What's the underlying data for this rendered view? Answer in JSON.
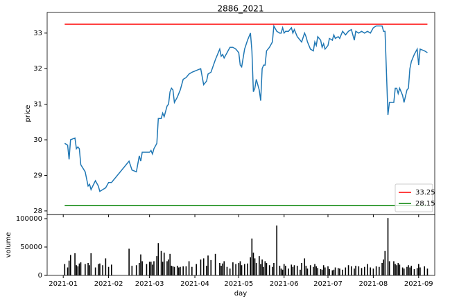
{
  "chart_data": [
    {
      "type": "line",
      "title": "2886_2021",
      "ylabel": "price",
      "x": [
        "2021-01-02",
        "2021-01-04",
        "2021-01-05",
        "2021-01-06",
        "2021-01-09",
        "2021-01-10",
        "2021-01-11",
        "2021-01-12",
        "2021-01-13",
        "2021-01-16",
        "2021-01-18",
        "2021-01-19",
        "2021-01-20",
        "2021-01-23",
        "2021-01-25",
        "2021-01-26",
        "2021-01-28",
        "2021-01-30",
        "2021-02-01",
        "2021-02-03",
        "2021-02-15",
        "2021-02-17",
        "2021-02-20",
        "2021-02-22",
        "2021-02-23",
        "2021-02-24",
        "2021-02-27",
        "2021-03-01",
        "2021-03-02",
        "2021-03-03",
        "2021-03-04",
        "2021-03-06",
        "2021-03-07",
        "2021-03-09",
        "2021-03-10",
        "2021-03-11",
        "2021-03-13",
        "2021-03-14",
        "2021-03-15",
        "2021-03-16",
        "2021-03-17",
        "2021-03-18",
        "2021-03-20",
        "2021-03-21",
        "2021-03-22",
        "2021-03-24",
        "2021-03-26",
        "2021-03-28",
        "2021-03-30",
        "2021-04-02",
        "2021-04-05",
        "2021-04-07",
        "2021-04-09",
        "2021-04-10",
        "2021-04-12",
        "2021-04-15",
        "2021-04-18",
        "2021-04-19",
        "2021-04-20",
        "2021-04-21",
        "2021-04-23",
        "2021-04-25",
        "2021-04-27",
        "2021-04-29",
        "2021-05-01",
        "2021-05-02",
        "2021-05-03",
        "2021-05-05",
        "2021-05-07",
        "2021-05-09",
        "2021-05-10",
        "2021-05-11",
        "2021-05-12",
        "2021-05-13",
        "2021-05-15",
        "2021-05-16",
        "2021-05-17",
        "2021-05-18",
        "2021-05-19",
        "2021-05-20",
        "2021-05-22",
        "2021-05-24",
        "2021-05-25",
        "2021-05-27",
        "2021-05-29",
        "2021-05-30",
        "2021-05-31",
        "2021-06-01",
        "2021-06-02",
        "2021-06-04",
        "2021-06-06",
        "2021-06-07",
        "2021-06-08",
        "2021-06-10",
        "2021-06-12",
        "2021-06-13",
        "2021-06-15",
        "2021-06-16",
        "2021-06-17",
        "2021-06-19",
        "2021-06-21",
        "2021-06-22",
        "2021-06-23",
        "2021-06-24",
        "2021-06-26",
        "2021-06-27",
        "2021-06-28",
        "2021-06-29",
        "2021-07-01",
        "2021-07-02",
        "2021-07-04",
        "2021-07-05",
        "2021-07-06",
        "2021-07-08",
        "2021-07-09",
        "2021-07-11",
        "2021-07-13",
        "2021-07-15",
        "2021-07-17",
        "2021-07-19",
        "2021-07-20",
        "2021-07-22",
        "2021-07-24",
        "2021-07-26",
        "2021-07-28",
        "2021-07-30",
        "2021-08-01",
        "2021-08-03",
        "2021-08-05",
        "2021-08-07",
        "2021-08-08",
        "2021-08-09",
        "2021-08-11",
        "2021-08-12",
        "2021-08-15",
        "2021-08-16",
        "2021-08-17",
        "2021-08-18",
        "2021-08-19",
        "2021-08-21",
        "2021-08-22",
        "2021-08-24",
        "2021-08-25",
        "2021-08-26",
        "2021-08-27",
        "2021-08-29",
        "2021-08-31",
        "2021-09-01",
        "2021-09-02",
        "2021-09-05",
        "2021-09-07"
      ],
      "series": [
        {
          "color": "#1f77b4",
          "values": [
            29.9,
            29.85,
            29.45,
            30.0,
            30.05,
            29.75,
            29.8,
            29.75,
            29.3,
            29.1,
            28.7,
            28.75,
            28.6,
            28.85,
            28.7,
            28.55,
            28.6,
            28.65,
            28.8,
            28.8,
            29.4,
            29.15,
            29.1,
            29.55,
            29.4,
            29.65,
            29.65,
            29.65,
            29.7,
            29.6,
            29.75,
            29.9,
            30.6,
            30.6,
            30.75,
            30.65,
            30.95,
            31.0,
            31.35,
            31.45,
            31.4,
            31.05,
            31.2,
            31.3,
            31.4,
            31.7,
            31.75,
            31.85,
            31.9,
            31.95,
            32.0,
            31.55,
            31.65,
            31.85,
            31.9,
            32.25,
            32.55,
            32.35,
            32.4,
            32.3,
            32.45,
            32.6,
            32.6,
            32.55,
            32.45,
            32.1,
            32.05,
            32.55,
            32.8,
            33.0,
            32.5,
            31.35,
            31.45,
            31.7,
            31.4,
            31.1,
            32.0,
            32.1,
            32.1,
            32.5,
            32.6,
            32.75,
            33.2,
            33.05,
            33.0,
            33.0,
            33.15,
            33.0,
            33.05,
            33.05,
            33.15,
            33.0,
            33.1,
            32.9,
            32.8,
            32.75,
            33.0,
            32.9,
            32.75,
            32.55,
            32.5,
            32.75,
            32.65,
            32.9,
            32.8,
            32.6,
            32.7,
            32.55,
            32.65,
            32.85,
            32.8,
            32.95,
            32.85,
            32.9,
            32.85,
            33.05,
            32.95,
            33.05,
            33.1,
            32.8,
            33.05,
            33.0,
            33.05,
            33.0,
            33.05,
            33.0,
            33.15,
            33.2,
            33.2,
            33.2,
            33.05,
            33.05,
            30.7,
            31.05,
            31.05,
            31.45,
            31.45,
            31.3,
            31.45,
            31.25,
            31.05,
            31.4,
            31.45,
            32.0,
            32.2,
            32.4,
            32.55,
            32.1,
            32.55,
            32.5,
            32.45
          ]
        }
      ],
      "hlines": [
        {
          "name": "33.25",
          "value": 33.25,
          "color": "#ff0000"
        },
        {
          "name": "28.15",
          "value": 28.15,
          "color": "#008000"
        }
      ],
      "legend": "lower right",
      "ylim": [
        27.9,
        33.58
      ],
      "yticks": [
        28,
        29,
        30,
        31,
        32,
        33
      ]
    },
    {
      "type": "bar",
      "xlabel": "day",
      "ylabel": "volume",
      "color": "#000000",
      "values": [
        20000,
        14000,
        26000,
        36000,
        39000,
        18000,
        16000,
        21000,
        23000,
        20000,
        22000,
        18000,
        39000,
        14000,
        20000,
        21000,
        18000,
        30000,
        15000,
        19000,
        47000,
        17000,
        18000,
        22000,
        37000,
        25000,
        20000,
        24000,
        24000,
        19000,
        25000,
        34000,
        57000,
        43000,
        24000,
        40000,
        25000,
        28000,
        38000,
        17000,
        16000,
        15000,
        17000,
        14000,
        15000,
        16000,
        16000,
        25000,
        15000,
        20000,
        28000,
        30000,
        17000,
        35000,
        27000,
        38000,
        22000,
        17000,
        21000,
        25000,
        15000,
        12000,
        23000,
        20000,
        22000,
        25000,
        18000,
        20000,
        21000,
        32000,
        65000,
        40000,
        30000,
        22000,
        34000,
        20000,
        28000,
        15000,
        25000,
        22000,
        18000,
        15000,
        22000,
        88000,
        17000,
        12000,
        10000,
        20000,
        17000,
        12000,
        19000,
        15000,
        18000,
        17000,
        10000,
        22000,
        30000,
        17000,
        12000,
        18000,
        15000,
        20000,
        16000,
        13000,
        11000,
        10000,
        18000,
        14000,
        16000,
        11000,
        9000,
        10000,
        14000,
        13000,
        12000,
        10000,
        14000,
        18000,
        16000,
        12000,
        17000,
        16000,
        13000,
        15000,
        20000,
        14000,
        12000,
        16000,
        15000,
        22000,
        28000,
        43000,
        101000,
        25000,
        25000,
        20000,
        18000,
        22000,
        19000,
        14000,
        12000,
        15000,
        18000,
        14000,
        17000,
        11000,
        13000,
        20000,
        14000,
        16000,
        12000
      ],
      "xlim": [
        "2020-12-21",
        "2021-09-12"
      ],
      "xticks": [
        {
          "value": "2021-01-01",
          "label": "2021-01"
        },
        {
          "value": "2021-02-01",
          "label": "2021-02"
        },
        {
          "value": "2021-03-01",
          "label": "2021-03"
        },
        {
          "value": "2021-04-01",
          "label": "2021-04"
        },
        {
          "value": "2021-05-01",
          "label": "2021-05"
        },
        {
          "value": "2021-06-01",
          "label": "2021-06"
        },
        {
          "value": "2021-07-01",
          "label": "2021-07"
        },
        {
          "value": "2021-08-01",
          "label": "2021-08"
        },
        {
          "value": "2021-09-01",
          "label": "2021-09"
        }
      ],
      "ylim": [
        0,
        107300
      ],
      "yticks": [
        0,
        50000,
        100000
      ]
    }
  ]
}
